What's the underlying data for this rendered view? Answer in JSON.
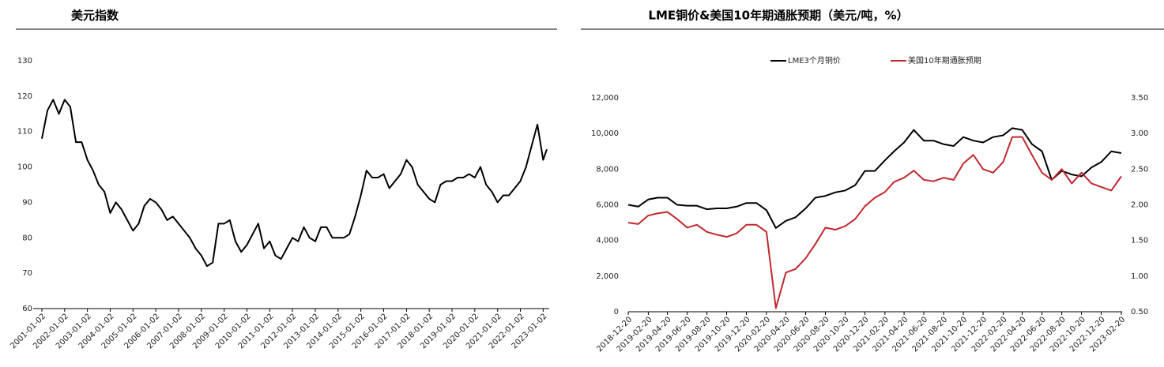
{
  "chart_data": [
    {
      "type": "line",
      "title": "美元指数",
      "x": [
        "2001-01-02",
        "2001-04-02",
        "2001-07-02",
        "2001-10-02",
        "2002-01-02",
        "2002-04-02",
        "2002-07-02",
        "2002-10-02",
        "2003-01-02",
        "2003-04-02",
        "2003-07-02",
        "2003-10-02",
        "2004-01-02",
        "2004-04-02",
        "2004-07-02",
        "2004-10-02",
        "2005-01-02",
        "2005-04-02",
        "2005-07-02",
        "2005-10-02",
        "2006-01-02",
        "2006-04-02",
        "2006-07-02",
        "2006-10-02",
        "2007-01-02",
        "2007-04-02",
        "2007-07-02",
        "2007-10-02",
        "2008-01-02",
        "2008-04-02",
        "2008-07-02",
        "2008-10-02",
        "2009-01-02",
        "2009-04-02",
        "2009-07-02",
        "2009-10-02",
        "2010-01-02",
        "2010-04-02",
        "2010-07-02",
        "2010-10-02",
        "2011-01-02",
        "2011-04-02",
        "2011-07-02",
        "2011-10-02",
        "2012-01-02",
        "2012-04-02",
        "2012-07-02",
        "2012-10-02",
        "2013-01-02",
        "2013-04-02",
        "2013-07-02",
        "2013-10-02",
        "2014-01-02",
        "2014-04-02",
        "2014-07-02",
        "2014-10-02",
        "2015-01-02",
        "2015-04-02",
        "2015-07-02",
        "2015-10-02",
        "2016-01-02",
        "2016-04-02",
        "2016-07-02",
        "2016-10-02",
        "2017-01-02",
        "2017-04-02",
        "2017-07-02",
        "2017-10-02",
        "2018-01-02",
        "2018-04-02",
        "2018-07-02",
        "2018-10-02",
        "2019-01-02",
        "2019-04-02",
        "2019-07-02",
        "2019-10-02",
        "2020-01-02",
        "2020-04-02",
        "2020-07-02",
        "2020-10-02",
        "2021-01-02",
        "2021-04-02",
        "2021-07-02",
        "2021-10-02",
        "2022-01-02",
        "2022-04-02",
        "2022-07-02",
        "2022-10-02",
        "2023-01-02",
        "2023-03-02"
      ],
      "series": [
        {
          "color": "#000000",
          "values": [
            108,
            116,
            119,
            115,
            119,
            117,
            107,
            107,
            102,
            99,
            95,
            93,
            87,
            90,
            88,
            85,
            82,
            84,
            89,
            91,
            90,
            88,
            85,
            86,
            84,
            82,
            80,
            77,
            75,
            72,
            73,
            84,
            84,
            85,
            79,
            76,
            78,
            81,
            84,
            77,
            79,
            75,
            74,
            77,
            80,
            79,
            83,
            80,
            79,
            83,
            83,
            80,
            80,
            80,
            81,
            86,
            92,
            99,
            97,
            97,
            98,
            94,
            96,
            98,
            102,
            100,
            95,
            93,
            91,
            90,
            95,
            96,
            96,
            97,
            97,
            98,
            97,
            100,
            95,
            93,
            90,
            92,
            92,
            94,
            96,
            100,
            106,
            112,
            102,
            105
          ]
        }
      ],
      "xlim": [
        "2001-01-02",
        "2023-03-02"
      ],
      "xticks": [
        "2001-01-02",
        "2002-01-02",
        "2003-01-02",
        "2004-01-02",
        "2005-01-02",
        "2006-01-02",
        "2007-01-02",
        "2008-01-02",
        "2009-01-02",
        "2010-01-02",
        "2011-01-02",
        "2012-01-02",
        "2013-01-02",
        "2014-01-02",
        "2015-01-02",
        "2016-01-02",
        "2017-01-02",
        "2018-01-02",
        "2019-01-02",
        "2020-01-02",
        "2021-01-02",
        "2022-01-02",
        "2023-01-02"
      ],
      "ylim": [
        60,
        130
      ],
      "yticks": [
        60,
        70,
        80,
        90,
        100,
        110,
        120,
        130
      ]
    },
    {
      "type": "line",
      "title": "LME铜价&美国10年期通胀预期（美元/吨，%）",
      "x": [
        "2018-12-20",
        "2019-01-20",
        "2019-02-20",
        "2019-03-20",
        "2019-04-20",
        "2019-05-20",
        "2019-06-20",
        "2019-07-20",
        "2019-08-20",
        "2019-09-20",
        "2019-10-20",
        "2019-11-20",
        "2019-12-20",
        "2020-01-20",
        "2020-02-20",
        "2020-03-20",
        "2020-04-20",
        "2020-05-20",
        "2020-06-20",
        "2020-07-20",
        "2020-08-20",
        "2020-09-20",
        "2020-10-20",
        "2020-11-20",
        "2020-12-20",
        "2021-01-20",
        "2021-02-20",
        "2021-03-20",
        "2021-04-20",
        "2021-05-20",
        "2021-06-20",
        "2021-07-20",
        "2021-08-20",
        "2021-09-20",
        "2021-10-20",
        "2021-11-20",
        "2021-12-20",
        "2022-01-20",
        "2022-02-20",
        "2022-03-20",
        "2022-04-20",
        "2022-05-20",
        "2022-06-20",
        "2022-07-20",
        "2022-08-20",
        "2022-09-20",
        "2022-10-20",
        "2022-11-20",
        "2022-12-20",
        "2023-01-20",
        "2023-02-20"
      ],
      "series": [
        {
          "name": "LME3个月铜价",
          "color": "#000000",
          "values": [
            6000,
            5900,
            6300,
            6400,
            6400,
            6000,
            5950,
            5950,
            5750,
            5800,
            5800,
            5900,
            6100,
            6100,
            5700,
            4700,
            5100,
            5300,
            5800,
            6400,
            6500,
            6700,
            6800,
            7100,
            7900,
            7900,
            8500,
            9000,
            9500,
            10200,
            9600,
            9600,
            9400,
            9300,
            9800,
            9600,
            9500,
            9800,
            9900,
            10300,
            10200,
            9400,
            9000,
            7400,
            7900,
            7700,
            7600,
            8100,
            8400,
            9000,
            8900
          ]
        },
        {
          "name": "美国10年期通胀预期",
          "color": "#c0282d",
          "axis": "y2",
          "values": [
            1.75,
            1.73,
            1.85,
            1.88,
            1.9,
            1.8,
            1.68,
            1.72,
            1.62,
            1.58,
            1.55,
            1.6,
            1.72,
            1.72,
            1.62,
            0.55,
            1.05,
            1.1,
            1.25,
            1.45,
            1.68,
            1.65,
            1.7,
            1.8,
            1.98,
            2.1,
            2.18,
            2.32,
            2.38,
            2.48,
            2.35,
            2.33,
            2.38,
            2.35,
            2.58,
            2.7,
            2.5,
            2.45,
            2.6,
            2.95,
            2.95,
            2.7,
            2.45,
            2.35,
            2.5,
            2.3,
            2.45,
            2.3,
            2.25,
            2.2,
            2.4
          ]
        }
      ],
      "xlim": [
        "2018-12-20",
        "2023-02-20"
      ],
      "xticks": [
        "2018-12-20",
        "2019-02-20",
        "2019-04-20",
        "2019-06-20",
        "2019-08-20",
        "2019-10-20",
        "2019-12-20",
        "2020-02-20",
        "2020-04-20",
        "2020-06-20",
        "2020-08-20",
        "2020-10-20",
        "2020-12-20",
        "2021-02-20",
        "2021-04-20",
        "2021-06-20",
        "2021-08-20",
        "2021-10-20",
        "2021-12-20",
        "2022-02-20",
        "2022-04-20",
        "2022-06-20",
        "2022-08-20",
        "2022-10-20",
        "2022-12-20",
        "2023-02-20"
      ],
      "ylim": [
        0,
        12000
      ],
      "yticks": [
        0,
        {
          "value": 2000,
          "label": "2,000"
        },
        {
          "value": 4000,
          "label": "4,000"
        },
        {
          "value": 6000,
          "label": "6,000"
        },
        {
          "value": 8000,
          "label": "8,000"
        },
        {
          "value": 10000,
          "label": "10,000"
        },
        {
          "value": 12000,
          "label": "12,000"
        }
      ],
      "y2lim": [
        0.5,
        3.5
      ],
      "y2ticks": [
        {
          "value": 0.5,
          "label": "0.50"
        },
        {
          "value": 1,
          "label": "1.00"
        },
        {
          "value": 1.5,
          "label": "1.50"
        },
        {
          "value": 2,
          "label": "2.00"
        },
        {
          "value": 2.5,
          "label": "2.50"
        },
        {
          "value": 3,
          "label": "3.00"
        },
        {
          "value": 3.5,
          "label": "3.50"
        }
      ],
      "legend": "top"
    }
  ]
}
